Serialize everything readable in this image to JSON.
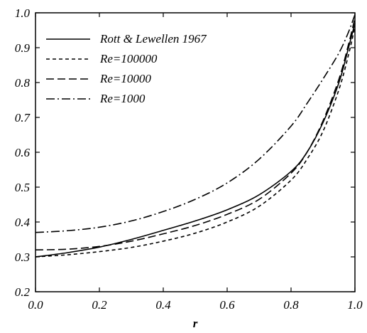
{
  "chart_data": {
    "type": "line",
    "title": "",
    "xlabel": "r",
    "ylabel": "",
    "xlim": [
      0.0,
      1.0
    ],
    "ylim": [
      0.2,
      1.0
    ],
    "grid": false,
    "legend_position": "top-left",
    "x_ticks": [
      "0.0",
      "0.2",
      "0.4",
      "0.6",
      "0.8",
      "1.0"
    ],
    "y_ticks": [
      "0.2",
      "0.3",
      "0.4",
      "0.5",
      "0.6",
      "0.7",
      "0.8",
      "0.9",
      "1.0"
    ],
    "series": [
      {
        "name": "Rott & Lewellen 1967",
        "dash": "solid",
        "x": [
          0.0,
          0.1,
          0.2,
          0.3,
          0.4,
          0.5,
          0.6,
          0.7,
          0.8,
          0.85,
          0.9,
          0.95,
          0.98,
          1.0
        ],
        "y": [
          0.3,
          0.312,
          0.328,
          0.35,
          0.376,
          0.403,
          0.435,
          0.478,
          0.545,
          0.6,
          0.685,
          0.8,
          0.9,
          0.97
        ]
      },
      {
        "name": "Re=100000",
        "dash": "short-dash",
        "x": [
          0.0,
          0.1,
          0.2,
          0.3,
          0.4,
          0.5,
          0.6,
          0.7,
          0.8,
          0.85,
          0.9,
          0.95,
          0.98,
          1.0
        ],
        "y": [
          0.3,
          0.306,
          0.315,
          0.327,
          0.345,
          0.368,
          0.4,
          0.445,
          0.52,
          0.58,
          0.66,
          0.78,
          0.88,
          0.96
        ]
      },
      {
        "name": "Re=10000",
        "dash": "long-dash",
        "x": [
          0.0,
          0.1,
          0.2,
          0.3,
          0.4,
          0.5,
          0.6,
          0.7,
          0.8,
          0.85,
          0.9,
          0.95,
          0.98,
          1.0
        ],
        "y": [
          0.32,
          0.322,
          0.33,
          0.345,
          0.366,
          0.39,
          0.422,
          0.465,
          0.54,
          0.6,
          0.69,
          0.81,
          0.91,
          0.985
        ]
      },
      {
        "name": "Re=1000",
        "dash": "dash-dot",
        "x": [
          0.0,
          0.1,
          0.2,
          0.3,
          0.4,
          0.5,
          0.6,
          0.7,
          0.8,
          0.85,
          0.9,
          0.95,
          0.98,
          1.0
        ],
        "y": [
          0.37,
          0.375,
          0.385,
          0.403,
          0.43,
          0.465,
          0.512,
          0.58,
          0.675,
          0.74,
          0.81,
          0.885,
          0.945,
          0.995
        ]
      }
    ]
  }
}
